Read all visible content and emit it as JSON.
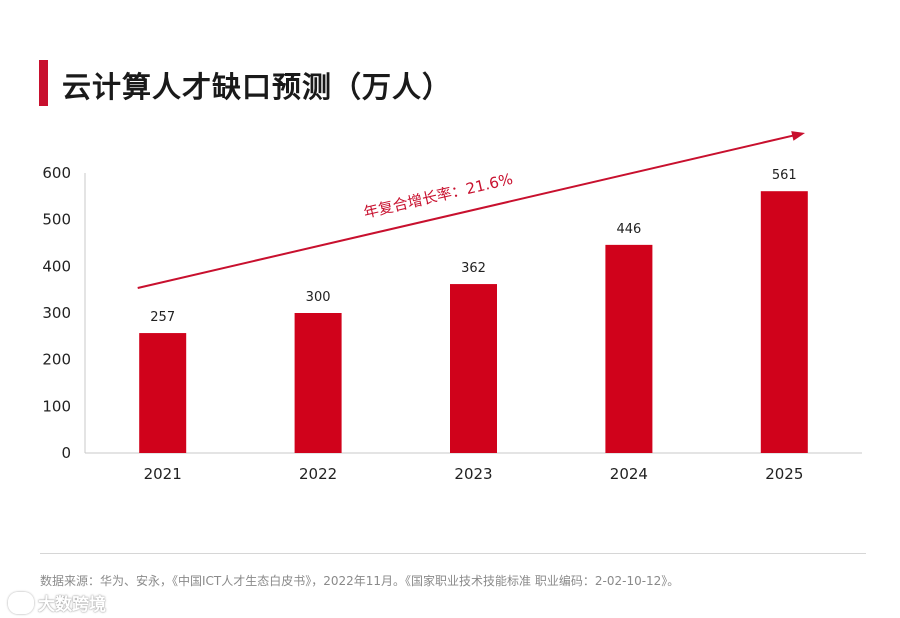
{
  "title": "云计算人才缺口预测（万人）",
  "source": "数据来源：华为、安永，《中国ICT人才生态白皮书》，2022年11月。《国家职业技术技能标准 职业编码：2-02-10-12》。",
  "watermark": "大数跨境",
  "colors": {
    "bar": "#d0021b",
    "accent": "#c8102e",
    "axis": "#c8c8c8",
    "text": "#222222",
    "annotation": "#c8102e"
  },
  "chart_data": {
    "type": "bar",
    "title": "云计算人才缺口预测（万人）",
    "categories": [
      "2021",
      "2022",
      "2023",
      "2024",
      "2025"
    ],
    "values": [
      257,
      300,
      362,
      446,
      561
    ],
    "data_labels": [
      "257",
      "300",
      "362",
      "446",
      "561"
    ],
    "yticks": [
      0,
      100,
      200,
      300,
      400,
      500,
      600
    ],
    "ylim": [
      0,
      600
    ],
    "xlabel": "",
    "ylabel": "",
    "annotation": {
      "text": "年复合增长率：21.6%",
      "type": "trend-arrow",
      "start_category": "2021",
      "end_category": "2025"
    }
  }
}
